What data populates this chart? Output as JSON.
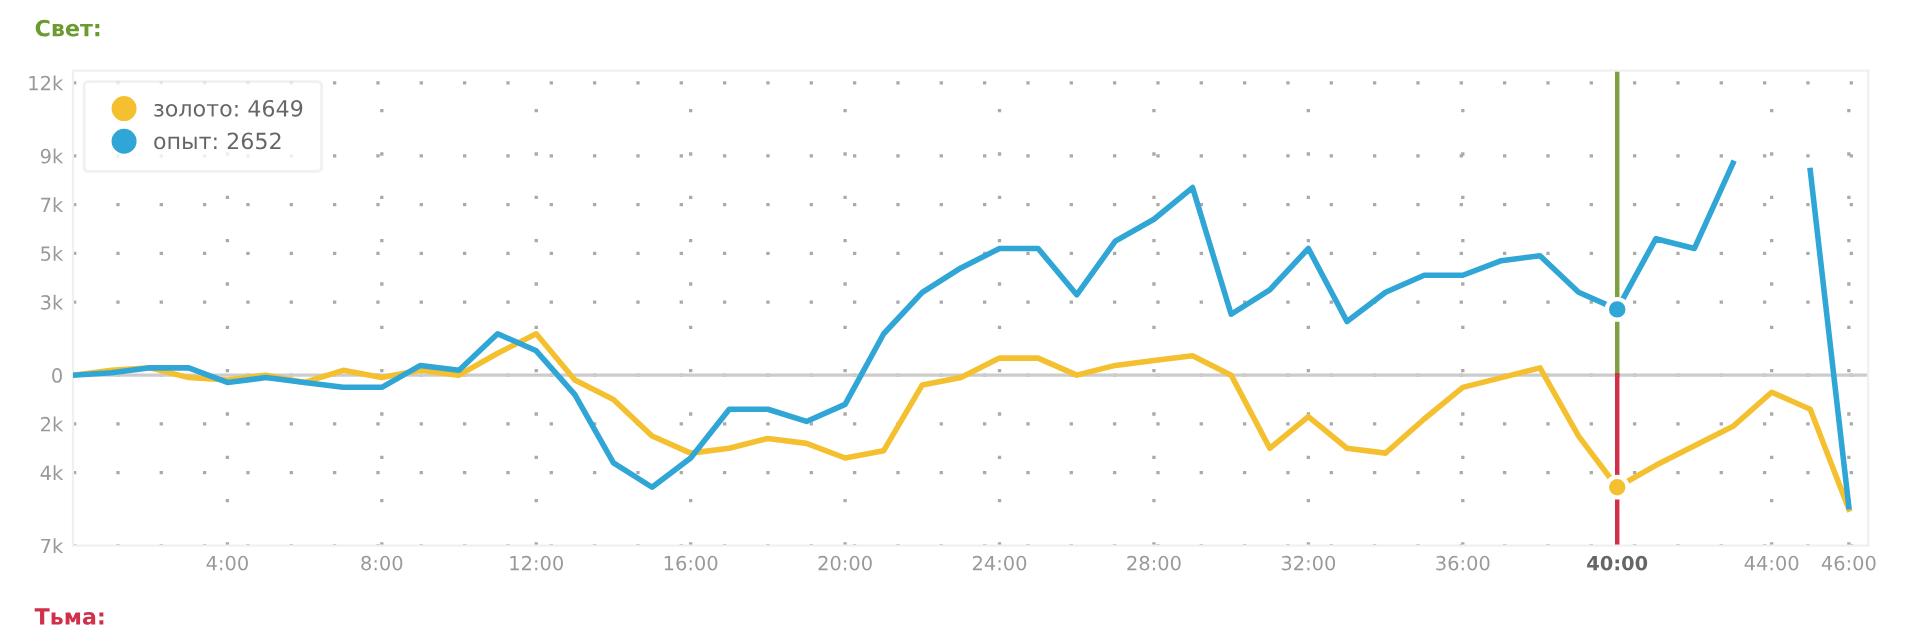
{
  "chart_data": {
    "type": "line",
    "x": [
      0,
      1,
      2,
      3,
      4,
      5,
      6,
      7,
      8,
      9,
      10,
      11,
      12,
      13,
      14,
      15,
      16,
      17,
      18,
      19,
      20,
      21,
      22,
      23,
      24,
      25,
      26,
      27,
      28,
      29,
      30,
      31,
      32,
      33,
      34,
      35,
      36,
      37,
      38,
      39,
      40,
      41,
      42,
      43,
      44,
      45,
      46
    ],
    "series": [
      {
        "name": "золото: 4649",
        "color": "#f4c030",
        "values": [
          0,
          200,
          300,
          -100,
          -200,
          0,
          -300,
          200,
          -100,
          200,
          0,
          900,
          1700,
          -200,
          -1000,
          -2500,
          -3200,
          -3000,
          -2600,
          -2800,
          -3400,
          -3100,
          -400,
          -100,
          700,
          700,
          0,
          400,
          600,
          800,
          0,
          -3000,
          -1700,
          -3000,
          -3200,
          -1800,
          -500,
          -100,
          300,
          -2500,
          -4600,
          -3700,
          -2900,
          -2100,
          -700,
          -1400,
          -5500
        ]
      },
      {
        "name": "опыт: 2652",
        "color": "#2fa6d6",
        "values": [
          0,
          100,
          300,
          300,
          -300,
          -100,
          -300,
          -500,
          -500,
          400,
          200,
          1700,
          1000,
          -800,
          -3600,
          -4600,
          -3400,
          -1400,
          -1400,
          -1900,
          -1200,
          1700,
          3400,
          4400,
          5200,
          5200,
          3300,
          5500,
          6400,
          7700,
          2500,
          3500,
          5200,
          2200,
          3400,
          4100,
          4100,
          4700,
          4900,
          3400,
          2700,
          5600,
          5200,
          8700,
          null,
          8400,
          -5400
        ]
      },
      {
        "type": "scatter",
        "color": "#f4c030",
        "x": [
          40
        ],
        "values": [
          -4600
        ],
        "marker": "circle"
      },
      {
        "type": "scatter",
        "color": "#2fa6d6",
        "x": [
          40
        ],
        "values": [
          2700
        ],
        "marker": "circle"
      }
    ],
    "xlim": [
      0,
      46.5
    ],
    "xticks": [
      {
        "value": 4,
        "label": "4:00"
      },
      {
        "value": 8,
        "label": "8:00"
      },
      {
        "value": 12,
        "label": "12:00"
      },
      {
        "value": 16,
        "label": "16:00"
      },
      {
        "value": 20,
        "label": "20:00"
      },
      {
        "value": 24,
        "label": "24:00"
      },
      {
        "value": 28,
        "label": "28:00"
      },
      {
        "value": 32,
        "label": "32:00"
      },
      {
        "value": 36,
        "label": "36:00"
      },
      {
        "value": 40,
        "label": "40:00"
      },
      {
        "value": 44,
        "label": "44:00"
      },
      {
        "value": 46,
        "label": "46:00"
      }
    ],
    "ylim": [
      -7000,
      12500
    ],
    "yticks": [
      {
        "value": -7000,
        "label": "7k"
      },
      {
        "value": -4000,
        "label": "4k"
      },
      {
        "value": -2000,
        "label": "2k"
      },
      0,
      {
        "value": 3000,
        "label": "3k"
      },
      {
        "value": 5000,
        "label": "5k"
      },
      {
        "value": 7000,
        "label": "7k"
      },
      {
        "value": 9000,
        "label": "9k"
      },
      {
        "value": 12000,
        "label": "12k"
      }
    ],
    "ref_lines": [
      {
        "axis": "y",
        "value": 0,
        "color": "#cccccc"
      },
      {
        "axis": "x",
        "value": 40,
        "color": "#7fa040"
      },
      {
        "axis": "x",
        "value": 40,
        "color": "#d0304a"
      }
    ],
    "grid": true,
    "legend": "top left",
    "marker": "none",
    "annotations": [
      "Свет:",
      "Тьма:"
    ]
  }
}
